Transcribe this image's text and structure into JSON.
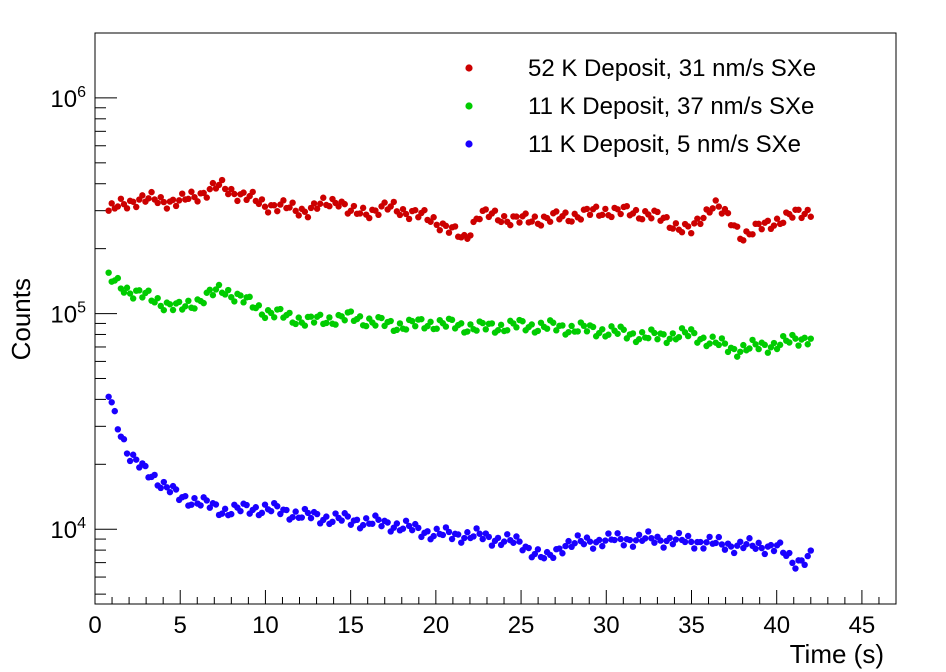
{
  "chart_data": {
    "type": "scatter",
    "xlabel": "Time (s)",
    "ylabel": "Counts",
    "xlim": [
      0,
      47
    ],
    "ylim": [
      4500,
      2000000
    ],
    "yscale": "log",
    "grid": false,
    "legend_position": "top-right",
    "x_ticks": [
      0,
      5,
      10,
      15,
      20,
      25,
      30,
      35,
      40,
      45
    ],
    "x_tick_labels": [
      "0",
      "5",
      "10",
      "15",
      "20",
      "25",
      "30",
      "35",
      "40",
      "45"
    ],
    "y_major_ticks": [
      {
        "value": 10000,
        "base": "10",
        "exp": "4"
      },
      {
        "value": 100000,
        "base": "10",
        "exp": "5"
      },
      {
        "value": 1000000,
        "base": "10",
        "exp": "6"
      }
    ],
    "series": [
      {
        "name": "52 K Deposit, 31 nm/s SXe",
        "color": "#cc0000",
        "x": [
          0.8,
          2.5,
          5,
          7.3,
          10,
          12.5,
          14.3,
          15,
          17.5,
          20,
          21.7,
          22.5,
          25,
          27.5,
          30,
          32.5,
          35,
          36.3,
          38,
          40,
          42
        ],
        "y": [
          300000,
          340000,
          330000,
          390000,
          320000,
          300000,
          340000,
          290000,
          310000,
          270000,
          220000,
          290000,
          270000,
          280000,
          300000,
          290000,
          240000,
          330000,
          230000,
          270000,
          300000
        ]
      },
      {
        "name": "11 K Deposit, 37 nm/s SXe",
        "color": "#00cc00",
        "x": [
          0.8,
          2,
          4,
          5,
          7.5,
          10,
          12.5,
          15,
          17.5,
          20,
          22.5,
          25,
          27.5,
          30,
          32.5,
          35,
          37.5,
          40,
          42
        ],
        "y": [
          145000,
          128000,
          112000,
          105000,
          130000,
          102000,
          92000,
          96000,
          88000,
          90000,
          86000,
          88000,
          86000,
          83000,
          78000,
          80000,
          68000,
          72000,
          78000
        ]
      },
      {
        "name": "11 K Deposit, 5 nm/s SXe",
        "color": "#1a00ff",
        "x": [
          0.8,
          1.2,
          1.6,
          2,
          2.5,
          3,
          3.5,
          4,
          4.5,
          5,
          6,
          7.5,
          10,
          12.5,
          15,
          17.5,
          20,
          22.5,
          25,
          26.5,
          27.5,
          30,
          32.5,
          35,
          37.5,
          40,
          41,
          42
        ],
        "y": [
          42000,
          33000,
          27000,
          22000,
          20000,
          18500,
          17500,
          16000,
          15000,
          14000,
          13500,
          12200,
          12500,
          11500,
          11000,
          10500,
          9500,
          9300,
          8600,
          7200,
          8500,
          8900,
          9000,
          8800,
          8400,
          8300,
          7000,
          7500
        ]
      }
    ]
  }
}
